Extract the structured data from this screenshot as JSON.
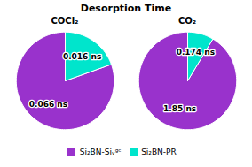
{
  "chart_data": [
    {
      "type": "pie",
      "title": "Desorption Time",
      "subtitle": "COCl₂",
      "categories": [
        "Si₂BN-Siᵥᵍᶜ",
        "Si₂BN-PR"
      ],
      "values": [
        0.066,
        0.016
      ],
      "value_labels": [
        "0.066 ns",
        "0.016 ns"
      ],
      "colors": [
        "#9932CC",
        "#00E5CC"
      ],
      "data_labels": true
    },
    {
      "type": "pie",
      "subtitle": "CO₂",
      "categories": [
        "Si₂BN-Siᵥᵍᶜ",
        "Si₂BN-PR"
      ],
      "values": [
        1.85,
        0.174
      ],
      "value_labels": [
        "1.85 ns",
        "0.174 ns"
      ],
      "colors": [
        "#9932CC",
        "#00E5CC"
      ],
      "data_labels": true,
      "legend": "bottom"
    }
  ]
}
